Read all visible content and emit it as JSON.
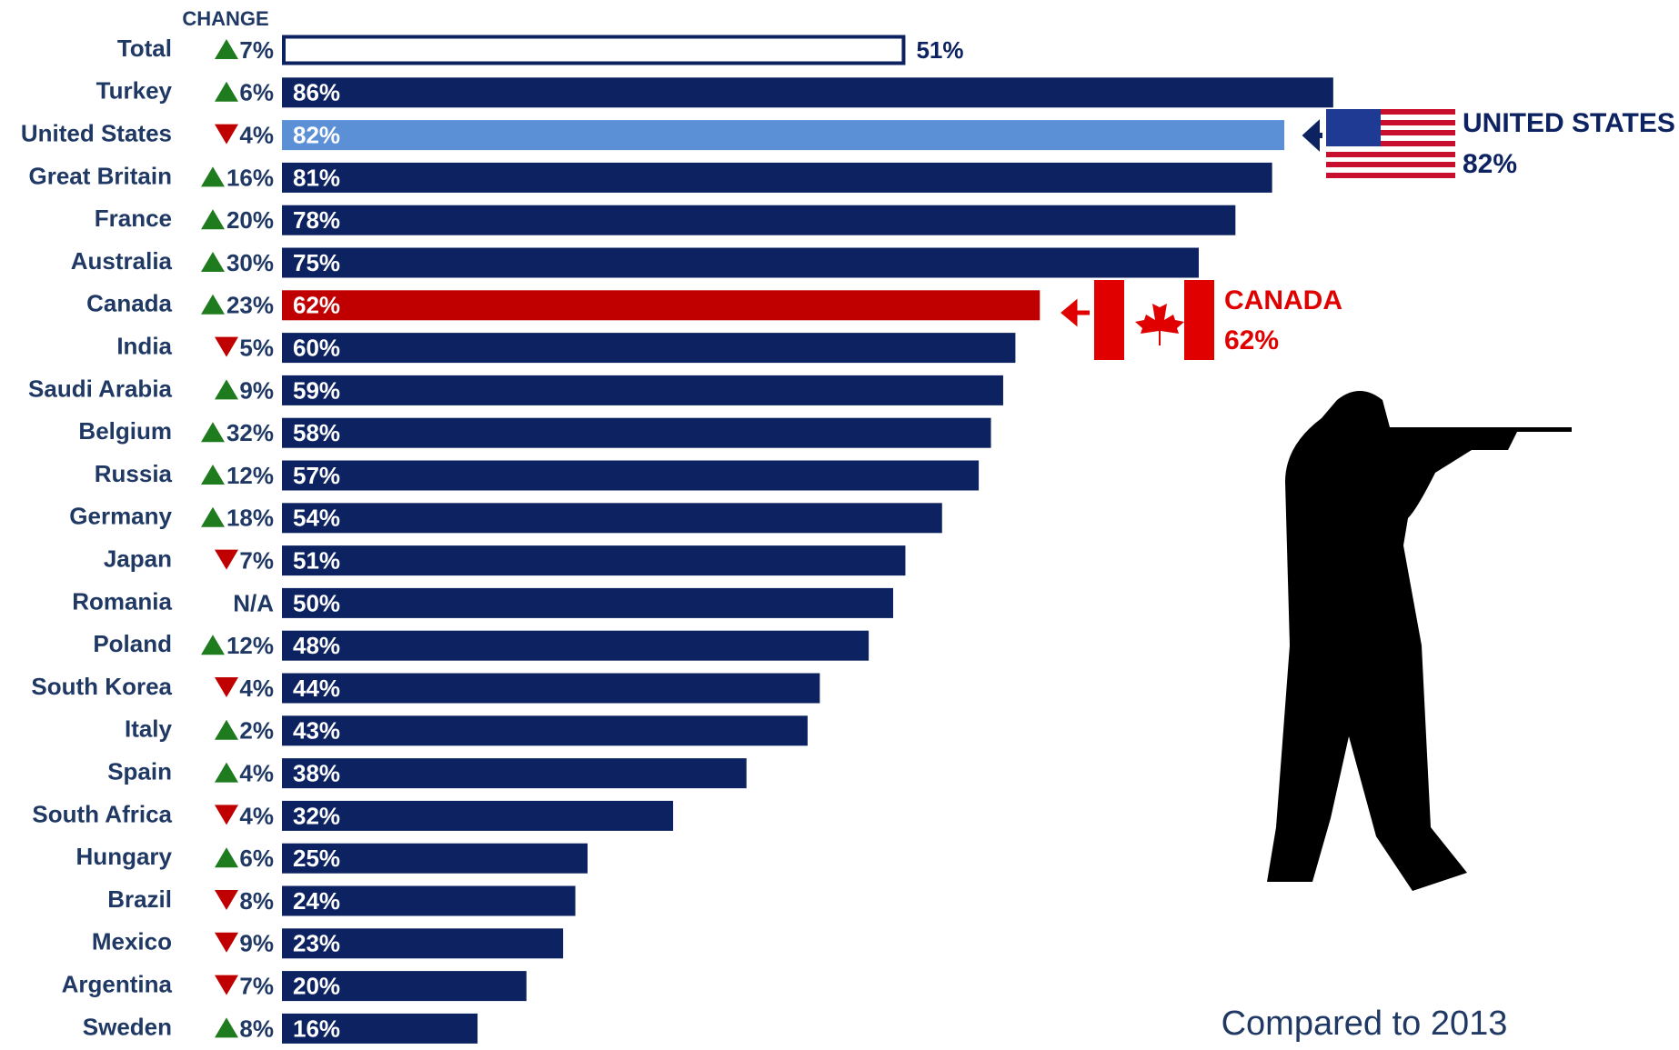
{
  "chart_data": {
    "type": "bar",
    "change_header": "CHANGE",
    "categories": [
      "Total",
      "Turkey",
      "United States",
      "Great Britain",
      "France",
      "Australia",
      "Canada",
      "India",
      "Saudi Arabia",
      "Belgium",
      "Russia",
      "Germany",
      "Japan",
      "Romania",
      "Poland",
      "South Korea",
      "Italy",
      "Spain",
      "South Africa",
      "Hungary",
      "Brazil",
      "Mexico",
      "Argentina",
      "Sweden"
    ],
    "values": [
      51,
      86,
      82,
      81,
      78,
      75,
      62,
      60,
      59,
      58,
      57,
      54,
      51,
      50,
      48,
      44,
      43,
      38,
      32,
      25,
      24,
      23,
      20,
      16
    ],
    "value_labels": [
      "51%",
      "86%",
      "82%",
      "81%",
      "78%",
      "75%",
      "62%",
      "60%",
      "59%",
      "58%",
      "57%",
      "54%",
      "51%",
      "50%",
      "48%",
      "44%",
      "43%",
      "38%",
      "32%",
      "25%",
      "24%",
      "23%",
      "20%",
      "16%"
    ],
    "change_labels": [
      "7%",
      "6%",
      "4%",
      "16%",
      "20%",
      "30%",
      "23%",
      "5%",
      "9%",
      "32%",
      "12%",
      "18%",
      "7%",
      "N/A",
      "12%",
      "4%",
      "2%",
      "4%",
      "4%",
      "6%",
      "8%",
      "9%",
      "7%",
      "8%"
    ],
    "change_direction": [
      "up",
      "up",
      "down",
      "up",
      "up",
      "up",
      "up",
      "down",
      "up",
      "up",
      "up",
      "up",
      "down",
      null,
      "up",
      "down",
      "up",
      "up",
      "down",
      "up",
      "down",
      "down",
      "down",
      "up"
    ],
    "colors": [
      "#ffffff",
      "#0d2260",
      "#5b8fd6",
      "#0d2260",
      "#0d2260",
      "#0d2260",
      "#c00000",
      "#0d2260",
      "#0d2260",
      "#0d2260",
      "#0d2260",
      "#0d2260",
      "#0d2260",
      "#0d2260",
      "#0d2260",
      "#0d2260",
      "#0d2260",
      "#0d2260",
      "#0d2260",
      "#0d2260",
      "#0d2260",
      "#0d2260",
      "#0d2260",
      "#0d2260"
    ],
    "outline_color": "#0d2260",
    "xlim": [
      0,
      100
    ],
    "annotations": [
      {
        "label": "UNITED STATES",
        "value_label": "82%",
        "color": "#0d2260"
      },
      {
        "label": "CANADA",
        "value_label": "62%",
        "color": "#e00000"
      }
    ],
    "footnote": "Compared to 2013"
  }
}
